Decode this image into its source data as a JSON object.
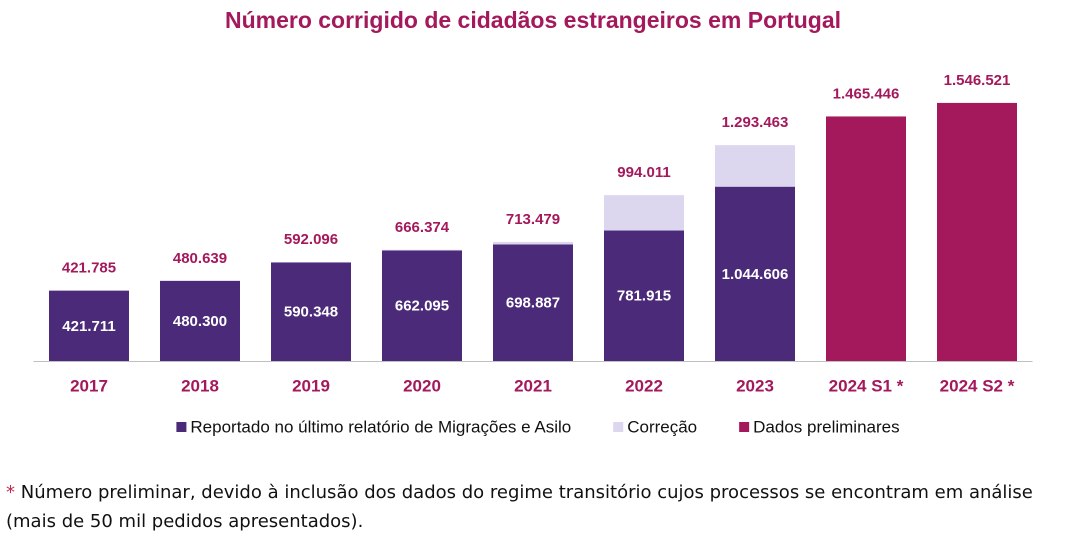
{
  "chart_data": {
    "type": "stacked_bar",
    "title": "Número corrigido de cidadãos estrangeiros em Portugal",
    "categories": [
      "2017",
      "2018",
      "2019",
      "2020",
      "2021",
      "2022",
      "2023",
      "2024 S1 *",
      "2024 S2 *"
    ],
    "series": [
      {
        "name": "Reportado no último relatório de Migrações e Asilo",
        "color": "#4b2b79",
        "label_position": "inside",
        "values": [
          421711,
          480300,
          590348,
          662095,
          698887,
          781915,
          1044606,
          null,
          null
        ],
        "value_labels": [
          "421.711",
          "480.300",
          "590.348",
          "662.095",
          "698.887",
          "781.915",
          "1.044.606",
          null,
          null
        ]
      },
      {
        "name": "Correção",
        "color": "#dcd6ef",
        "values": [
          74,
          339,
          1748,
          4279,
          14592,
          212096,
          248857,
          null,
          null
        ]
      },
      {
        "name": "Dados preliminares",
        "color": "#a3195b",
        "label_position": "above",
        "values": [
          null,
          null,
          null,
          null,
          null,
          null,
          null,
          1465446,
          1546521
        ],
        "value_labels": [
          null,
          null,
          null,
          null,
          null,
          null,
          null,
          "1.465.446",
          "1.546.521"
        ]
      }
    ],
    "totals": {
      "values": [
        421785,
        480639,
        592096,
        666374,
        713479,
        994011,
        1293463,
        null,
        null
      ],
      "value_labels": [
        "421.785",
        "480.639",
        "592.096",
        "666.374",
        "713.479",
        "994.011",
        "1.293.463",
        null,
        null
      ]
    },
    "ylim": [
      0,
      1600000
    ]
  },
  "footnote": {
    "marker": "*",
    "text": "Número preliminar, devido à inclusão dos dados do regime transitório cujos processos se encontram em análise (mais de 50 mil pedidos apresentados)."
  }
}
